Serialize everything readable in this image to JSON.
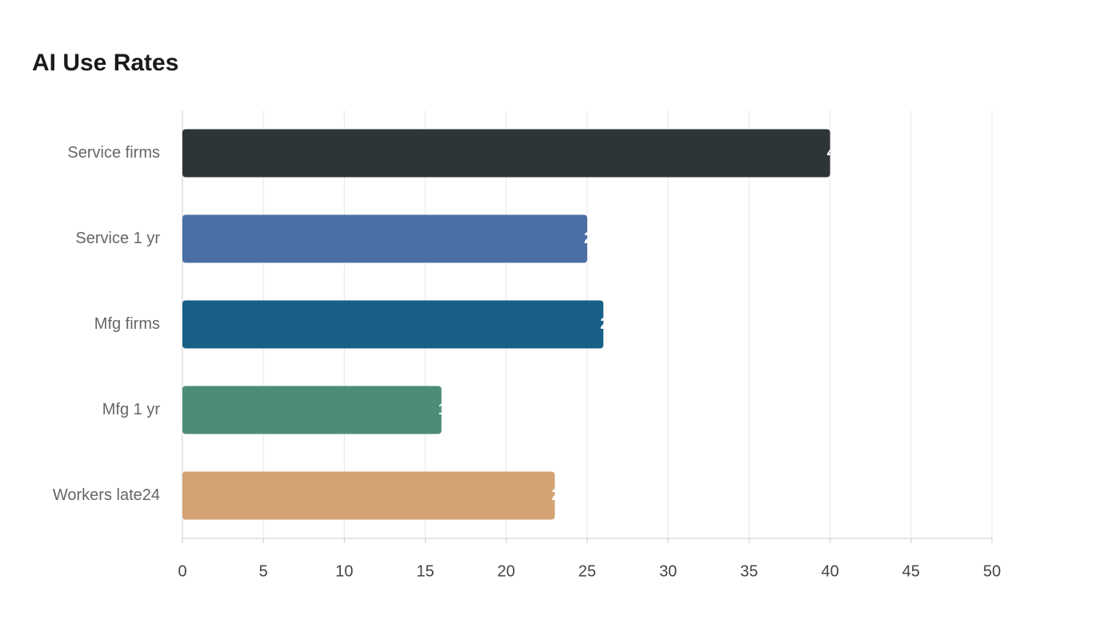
{
  "chart_data": {
    "type": "bar",
    "orientation": "horizontal",
    "title": "AI Use Rates",
    "categories": [
      "Service firms",
      "Service 1 yr",
      "Mfg firms",
      "Mfg 1 yr",
      "Workers late24"
    ],
    "values": [
      40,
      25,
      26,
      16,
      23
    ],
    "colors": [
      "#2e3538",
      "#4a6fa5",
      "#186088",
      "#4e8c7a",
      "#d4a373"
    ],
    "xlim": [
      0,
      50
    ],
    "xticks": [
      0,
      5,
      10,
      15,
      20,
      25,
      30,
      35,
      40,
      45,
      50
    ],
    "grid": true
  }
}
